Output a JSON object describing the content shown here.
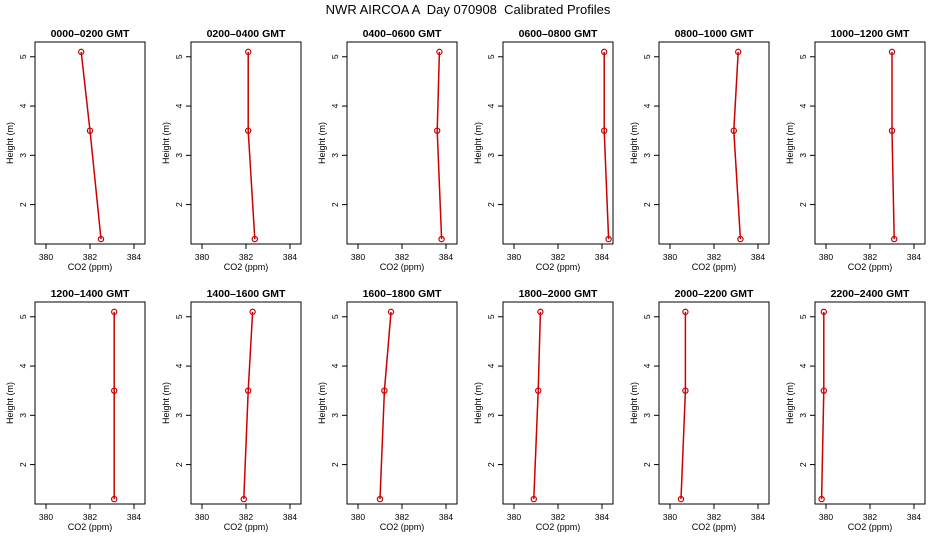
{
  "figure": {
    "title": "NWR AIRCOA A  Day 070908  Calibrated Profiles"
  },
  "chart_data": {
    "type": "line",
    "xlabel": "CO2 (ppm)",
    "ylabel": "Height (m)",
    "xlim": [
      379.5,
      384.5
    ],
    "ylim": [
      1.2,
      5.3
    ],
    "xticks": [
      380,
      382,
      384
    ],
    "yticks": [
      2,
      3,
      4,
      5
    ],
    "grid": false,
    "line_color": "#cc0000",
    "panels": [
      {
        "title": "0000–0200 GMT",
        "x": [
          382.5,
          382.0,
          381.6
        ],
        "y": [
          1.3,
          3.5,
          5.1
        ]
      },
      {
        "title": "0200–0400 GMT",
        "x": [
          382.4,
          382.1,
          382.1
        ],
        "y": [
          1.3,
          3.5,
          5.1
        ]
      },
      {
        "title": "0400–0600 GMT",
        "x": [
          383.8,
          383.6,
          383.7
        ],
        "y": [
          1.3,
          3.5,
          5.1
        ]
      },
      {
        "title": "0600–0800 GMT",
        "x": [
          384.3,
          384.1,
          384.1
        ],
        "y": [
          1.3,
          3.5,
          5.1
        ]
      },
      {
        "title": "0800–1000 GMT",
        "x": [
          383.2,
          382.9,
          383.1
        ],
        "y": [
          1.3,
          3.5,
          5.1
        ]
      },
      {
        "title": "1000–1200 GMT",
        "x": [
          383.1,
          383.0,
          383.0
        ],
        "y": [
          1.3,
          3.5,
          5.1
        ]
      },
      {
        "title": "1200–1400 GMT",
        "x": [
          383.1,
          383.1,
          383.1
        ],
        "y": [
          1.3,
          3.5,
          5.1
        ]
      },
      {
        "title": "1400–1600 GMT",
        "x": [
          381.9,
          382.1,
          382.3
        ],
        "y": [
          1.3,
          3.5,
          5.1
        ]
      },
      {
        "title": "1600–1800 GMT",
        "x": [
          381.0,
          381.2,
          381.5
        ],
        "y": [
          1.3,
          3.5,
          5.1
        ]
      },
      {
        "title": "1800–2000 GMT",
        "x": [
          380.9,
          381.1,
          381.2
        ],
        "y": [
          1.3,
          3.5,
          5.1
        ]
      },
      {
        "title": "2000–2200 GMT",
        "x": [
          380.5,
          380.7,
          380.7
        ],
        "y": [
          1.3,
          3.5,
          5.1
        ]
      },
      {
        "title": "2200–2400 GMT",
        "x": [
          379.8,
          379.9,
          379.9
        ],
        "y": [
          1.3,
          3.5,
          5.1
        ]
      }
    ]
  }
}
